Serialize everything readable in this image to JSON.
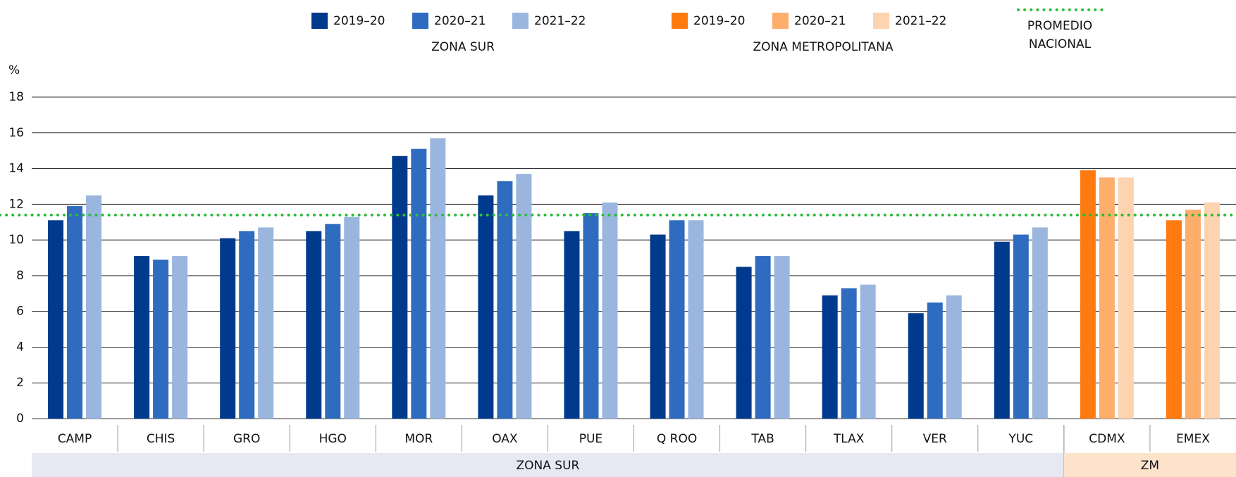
{
  "chart_data": {
    "type": "bar",
    "y_unit": "%",
    "categories": [
      "CAMP",
      "CHIS",
      "GRO",
      "HGO",
      "MOR",
      "OAX",
      "PUE",
      "Q ROO",
      "TAB",
      "TLAX",
      "VER",
      "YUC",
      "CDMX",
      "EMEX"
    ],
    "groups": [
      {
        "name": "ZONA SUR",
        "band_label": "ZONA SUR",
        "band_color": "#e6e9f3",
        "series": [
          {
            "name": "2019–20",
            "color": "#003a8c",
            "values": [
              11.1,
              9.1,
              10.1,
              10.5,
              14.7,
              12.5,
              10.5,
              10.3,
              8.5,
              6.9,
              5.9,
              9.9,
              null,
              null
            ]
          },
          {
            "name": "2020–21",
            "color": "#2f6cc0",
            "values": [
              11.9,
              8.9,
              10.5,
              10.9,
              15.1,
              13.3,
              11.5,
              11.1,
              9.1,
              7.3,
              6.5,
              10.3,
              null,
              null
            ]
          },
          {
            "name": "2021–22",
            "color": "#9ab6de",
            "values": [
              12.5,
              9.1,
              10.7,
              11.3,
              15.7,
              13.7,
              12.1,
              11.1,
              9.1,
              7.5,
              6.9,
              10.7,
              null,
              null
            ]
          }
        ]
      },
      {
        "name": "ZONA METROPOLITANA",
        "band_label": "ZM",
        "band_color": "#fde3cc",
        "series": [
          {
            "name": "2019–20",
            "color": "#ff7a0f",
            "values": [
              null,
              null,
              null,
              null,
              null,
              null,
              null,
              null,
              null,
              null,
              null,
              null,
              13.9,
              11.1
            ]
          },
          {
            "name": "2020–21",
            "color": "#fdae6b",
            "values": [
              null,
              null,
              null,
              null,
              null,
              null,
              null,
              null,
              null,
              null,
              null,
              null,
              13.5,
              11.7
            ]
          },
          {
            "name": "2021–22",
            "color": "#fdd3b0",
            "values": [
              null,
              null,
              null,
              null,
              null,
              null,
              null,
              null,
              null,
              null,
              null,
              null,
              13.5,
              12.1
            ]
          }
        ]
      }
    ],
    "average": {
      "label": [
        "PROMEDIO",
        "NACIONAL"
      ],
      "value": 11.4,
      "color": "#2ebd3b"
    },
    "ylim": [
      0,
      18
    ],
    "yticks": [
      0,
      2,
      4,
      6,
      8,
      10,
      12,
      14,
      16,
      18
    ],
    "grid": true
  }
}
